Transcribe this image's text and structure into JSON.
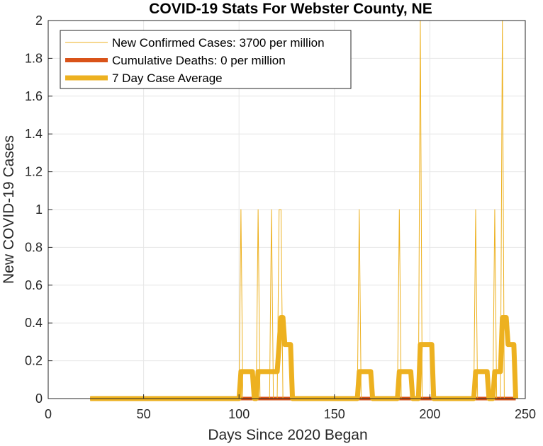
{
  "chart_data": {
    "type": "line",
    "title": "COVID-19 Stats For Webster County, NE",
    "xlabel": "Days Since 2020 Began",
    "ylabel": "New COVID-19 Cases",
    "xlim": [
      0,
      250
    ],
    "ylim": [
      0,
      2
    ],
    "xticks": [
      0,
      50,
      100,
      150,
      200,
      250
    ],
    "yticks": [
      0,
      0.2,
      0.4,
      0.6,
      0.8,
      1,
      1.2,
      1.4,
      1.6,
      1.8,
      2
    ],
    "grid": true,
    "legend_position": "top-left",
    "colors": {
      "new_cases": "#EDB120",
      "deaths": "#D95319",
      "avg": "#EDB120",
      "grid": "#e6e6e6",
      "axis": "#262626"
    },
    "series": [
      {
        "name": "New Confirmed Cases: 3700 per million",
        "style": "thin",
        "points": [
          [
            22,
            0
          ],
          [
            100,
            0
          ],
          [
            101,
            1
          ],
          [
            102,
            0
          ],
          [
            109,
            0
          ],
          [
            110,
            1
          ],
          [
            111,
            0
          ],
          [
            116,
            0
          ],
          [
            117,
            1
          ],
          [
            118,
            0
          ],
          [
            120,
            0
          ],
          [
            121,
            1
          ],
          [
            122,
            1
          ],
          [
            123,
            0
          ],
          [
            162,
            0
          ],
          [
            163,
            1
          ],
          [
            164,
            0
          ],
          [
            183,
            0
          ],
          [
            184,
            1
          ],
          [
            185,
            0
          ],
          [
            194,
            0
          ],
          [
            195,
            2
          ],
          [
            196,
            0
          ],
          [
            197,
            0
          ],
          [
            198,
            0
          ],
          [
            199,
            0
          ],
          [
            200,
            0
          ],
          [
            223,
            0
          ],
          [
            224,
            1
          ],
          [
            225,
            0
          ],
          [
            233,
            0
          ],
          [
            234,
            1
          ],
          [
            235,
            0
          ],
          [
            237,
            0
          ],
          [
            238,
            2
          ],
          [
            239,
            0
          ],
          [
            244,
            0
          ],
          [
            245,
            0
          ]
        ]
      },
      {
        "name": "Cumulative Deaths: 0 per million",
        "style": "medium",
        "points": [
          [
            22,
            0
          ],
          [
            245,
            0
          ]
        ]
      },
      {
        "name": "7 Day Case Average",
        "style": "thick",
        "points": [
          [
            22,
            0
          ],
          [
            100,
            0
          ],
          [
            101,
            0.143
          ],
          [
            107,
            0.143
          ],
          [
            108,
            0
          ],
          [
            109,
            0
          ],
          [
            110,
            0.143
          ],
          [
            120,
            0.143
          ],
          [
            121,
            0.286
          ],
          [
            122,
            0.429
          ],
          [
            123,
            0.429
          ],
          [
            124,
            0.286
          ],
          [
            127,
            0.286
          ],
          [
            128,
            0
          ],
          [
            162,
            0
          ],
          [
            163,
            0.143
          ],
          [
            169,
            0.143
          ],
          [
            170,
            0
          ],
          [
            183,
            0
          ],
          [
            184,
            0.143
          ],
          [
            190,
            0.143
          ],
          [
            191,
            0
          ],
          [
            194,
            0
          ],
          [
            195,
            0.286
          ],
          [
            201,
            0.286
          ],
          [
            202,
            0
          ],
          [
            223,
            0
          ],
          [
            224,
            0.143
          ],
          [
            230,
            0.143
          ],
          [
            231,
            0
          ],
          [
            233,
            0
          ],
          [
            234,
            0.143
          ],
          [
            237,
            0.143
          ],
          [
            238,
            0.429
          ],
          [
            240,
            0.429
          ],
          [
            241,
            0.286
          ],
          [
            244,
            0.286
          ],
          [
            245,
            0
          ]
        ]
      }
    ]
  }
}
